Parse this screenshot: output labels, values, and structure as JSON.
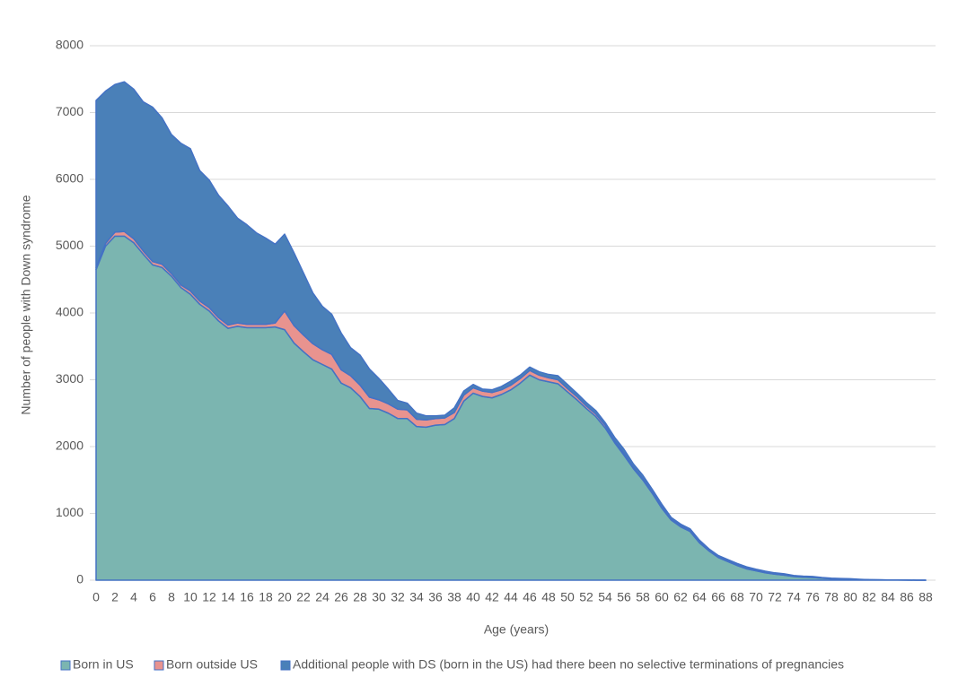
{
  "chart_data": {
    "type": "stacked-area",
    "x_label": "Age (years)",
    "y_label": "Number of people with Down syndrome",
    "x": [
      0,
      1,
      2,
      3,
      4,
      5,
      6,
      7,
      8,
      9,
      10,
      11,
      12,
      13,
      14,
      15,
      16,
      17,
      18,
      19,
      20,
      21,
      22,
      23,
      24,
      25,
      26,
      27,
      28,
      29,
      30,
      31,
      32,
      33,
      34,
      35,
      36,
      37,
      38,
      39,
      40,
      41,
      42,
      43,
      44,
      45,
      46,
      47,
      48,
      49,
      50,
      51,
      52,
      53,
      54,
      55,
      56,
      57,
      58,
      59,
      60,
      61,
      62,
      63,
      64,
      65,
      66,
      67,
      68,
      69,
      70,
      71,
      72,
      73,
      74,
      75,
      76,
      77,
      78,
      79,
      80,
      81,
      82,
      83,
      84,
      85,
      86,
      87,
      88
    ],
    "xlim": [
      0,
      88
    ],
    "xticks": [
      0,
      2,
      4,
      6,
      8,
      10,
      12,
      14,
      16,
      18,
      20,
      22,
      24,
      26,
      28,
      30,
      32,
      34,
      36,
      38,
      40,
      42,
      44,
      46,
      48,
      50,
      52,
      54,
      56,
      58,
      60,
      62,
      64,
      66,
      68,
      70,
      72,
      74,
      76,
      78,
      80,
      82,
      84,
      86,
      88
    ],
    "ylim": [
      0,
      8000
    ],
    "yticks": [
      0,
      1000,
      2000,
      3000,
      4000,
      5000,
      6000,
      7000,
      8000
    ],
    "grid": true,
    "legend": "bottom",
    "series": [
      {
        "name": "Born in US",
        "color": "#7bb5b0",
        "values": [
          4650,
          5000,
          5150,
          5150,
          5050,
          4880,
          4720,
          4680,
          4550,
          4380,
          4280,
          4130,
          4030,
          3880,
          3770,
          3800,
          3780,
          3780,
          3780,
          3790,
          3750,
          3550,
          3420,
          3300,
          3230,
          3160,
          2950,
          2880,
          2750,
          2570,
          2560,
          2500,
          2420,
          2420,
          2300,
          2290,
          2320,
          2330,
          2420,
          2680,
          2800,
          2750,
          2730,
          2780,
          2850,
          2950,
          3070,
          3000,
          2970,
          2940,
          2820,
          2700,
          2570,
          2450,
          2280,
          2060,
          1870,
          1670,
          1500,
          1300,
          1080,
          900,
          800,
          730,
          560,
          440,
          340,
          280,
          220,
          170,
          140,
          110,
          90,
          75,
          55,
          45,
          40,
          30,
          20,
          15,
          12,
          8,
          6,
          5,
          4,
          3,
          2,
          0,
          0
        ]
      },
      {
        "name": "Born outside US",
        "color": "#e8938f",
        "values": [
          30,
          40,
          60,
          70,
          60,
          50,
          50,
          50,
          40,
          40,
          50,
          50,
          50,
          50,
          50,
          50,
          50,
          50,
          50,
          60,
          280,
          260,
          250,
          240,
          220,
          220,
          200,
          180,
          170,
          170,
          140,
          140,
          140,
          130,
          110,
          110,
          100,
          100,
          90,
          90,
          80,
          80,
          80,
          70,
          70,
          70,
          70,
          70,
          60,
          60,
          50,
          50,
          40,
          40,
          40,
          30,
          30,
          20,
          20,
          20,
          20,
          20,
          20,
          20,
          20,
          10,
          10,
          10,
          10,
          10,
          5,
          5,
          5,
          5,
          5,
          5,
          5,
          5,
          5,
          5,
          5,
          0,
          0,
          0,
          0,
          0,
          0,
          0,
          0
        ]
      },
      {
        "name": "Additional people with DS (born in the US) had there been no selective terminations of pregnancies",
        "color": "#4a80b8",
        "values": [
          2500,
          2280,
          2210,
          2240,
          2240,
          2230,
          2310,
          2190,
          2080,
          2120,
          2130,
          1950,
          1910,
          1830,
          1780,
          1570,
          1490,
          1370,
          1290,
          1180,
          1150,
          1090,
          930,
          760,
          650,
          600,
          550,
          420,
          450,
          420,
          320,
          220,
          130,
          100,
          90,
          60,
          40,
          40,
          70,
          60,
          50,
          30,
          40,
          50,
          60,
          50,
          50,
          50,
          50,
          60,
          60,
          50,
          50,
          50,
          40,
          50,
          60,
          50,
          50,
          40,
          40,
          20,
          20,
          20,
          20,
          20,
          20,
          20,
          20,
          20,
          20,
          20,
          15,
          15,
          10,
          10,
          10,
          5,
          5,
          5,
          5,
          5,
          0,
          0,
          0,
          0,
          0,
          0,
          0
        ]
      }
    ]
  }
}
